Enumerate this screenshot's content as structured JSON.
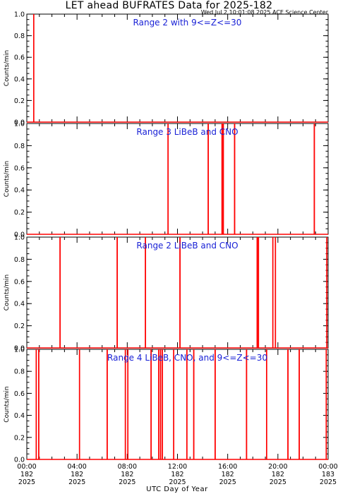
{
  "title": "LET ahead BUFRATES Data for 2025-182",
  "subtitle": "Wed Jul  2 10:01:08 2025 ACE Science Center",
  "colors": {
    "trace": "#ff0000",
    "label": "#1a22d6",
    "axis": "#000000"
  },
  "chart_data": {
    "type": "line",
    "xlabel": "UTC Day of Year",
    "ylabel": "Counts/min",
    "xlim": [
      0,
      24
    ],
    "ylim": [
      0.0,
      1.0
    ],
    "yticks": [
      0.0,
      0.2,
      0.4,
      0.6,
      0.8,
      1.0
    ],
    "ytick_labels": [
      "0.0",
      "0.2",
      "0.4",
      "0.6",
      "0.8",
      "1.0"
    ],
    "xticks": [
      {
        "x": 0,
        "lines": [
          "00:00",
          "182",
          "2025"
        ]
      },
      {
        "x": 4,
        "lines": [
          "04:00",
          "182",
          "2025"
        ]
      },
      {
        "x": 8,
        "lines": [
          "08:00",
          "182",
          "2025"
        ]
      },
      {
        "x": 12,
        "lines": [
          "12:00",
          "182",
          "2025"
        ]
      },
      {
        "x": 16,
        "lines": [
          "16:00",
          "182",
          "2025"
        ]
      },
      {
        "x": 20,
        "lines": [
          "20:00",
          "182",
          "2025"
        ]
      },
      {
        "x": 24,
        "lines": [
          "00:00",
          "183",
          "2025"
        ]
      }
    ],
    "panels": [
      {
        "label": "Range 2 with 9<=Z<=30",
        "spikes": [
          0.55
        ]
      },
      {
        "label": "Range 3 LiBeB and CNO",
        "spikes": [
          11.25,
          14.45,
          15.55,
          15.65,
          16.55,
          22.9
        ]
      },
      {
        "label": "Range 2 LiBeB and CNO",
        "spikes": [
          2.65,
          7.2,
          9.45,
          12.2,
          18.35,
          18.45,
          19.6,
          19.8,
          23.9
        ]
      },
      {
        "label": "Range 4 LiBeB, CNO, and 9<=Z<=30",
        "spikes": [
          0.75,
          0.95,
          4.2,
          6.4,
          7.85,
          8.05,
          9.9,
          10.5,
          10.65,
          10.8,
          11.7,
          12.75,
          13.3,
          15.0,
          17.5,
          19.1,
          20.8,
          21.7,
          23.85
        ]
      }
    ]
  }
}
